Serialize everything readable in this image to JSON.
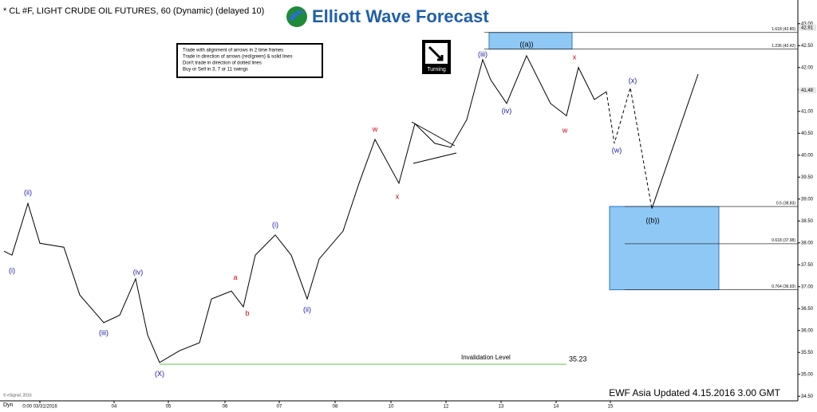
{
  "chart_data": {
    "type": "line",
    "title": "* CL #F, LIGHT CRUDE OIL FUTURES, 60 (Dynamic) (delayed 10)",
    "brand": "Elliott Wave Forecast",
    "footer": "EWF Asia Updated 4.15.2016 3.00 GMT",
    "copyright": "© eSignal, 2016",
    "dyn_label": "Dyn",
    "rules": [
      "Trade with alignment of arrows in 2 time frames",
      "Trade in direction of arrows (red/green) & solid lines",
      "Don't trade in direction of dotted lines",
      "Buy or Sell in 3, 7 or 11 swings"
    ],
    "turning_label": "Turning",
    "xlim": [
      0,
      200
    ],
    "ylim": [
      34.45,
      43.45
    ],
    "xticks": [
      {
        "value": 10,
        "label": "0:00 03/31/2016"
      },
      {
        "value": 28.6,
        "label": "04"
      },
      {
        "value": 42.2,
        "label": "05"
      },
      {
        "value": 56.4,
        "label": "06"
      },
      {
        "value": 70,
        "label": "07"
      },
      {
        "value": 84,
        "label": "08"
      },
      {
        "value": 98,
        "label": "10"
      },
      {
        "value": 111.8,
        "label": "12"
      },
      {
        "value": 125.6,
        "label": "13"
      },
      {
        "value": 139.4,
        "label": "14"
      },
      {
        "value": 153,
        "label": "15"
      }
    ],
    "yticks": [
      {
        "value": 34.5,
        "label": "34.50"
      },
      {
        "value": 35,
        "label": "35.00"
      },
      {
        "value": 35.5,
        "label": "35.50"
      },
      {
        "value": 36,
        "label": "36.00"
      },
      {
        "value": 36.5,
        "label": "36.50"
      },
      {
        "value": 37,
        "label": "37.00"
      },
      {
        "value": 37.5,
        "label": "37.50"
      },
      {
        "value": 38,
        "label": "38.00"
      },
      {
        "value": 38.5,
        "label": "38.50"
      },
      {
        "value": 39,
        "label": "39.00"
      },
      {
        "value": 39.5,
        "label": "39.50"
      },
      {
        "value": 40,
        "label": "40.00"
      },
      {
        "value": 40.5,
        "label": "40.50"
      },
      {
        "value": 41,
        "label": "41.00"
      },
      {
        "value": 41.5,
        "label": "41.50"
      },
      {
        "value": 42,
        "label": "42.00"
      },
      {
        "value": 42.5,
        "label": "42.50"
      },
      {
        "value": 43,
        "label": "43.00"
      }
    ],
    "price_labels": [
      {
        "value": 42.91,
        "label": "42.91"
      },
      {
        "value": 41.48,
        "label": "41.48"
      }
    ],
    "series": [
      {
        "name": "CL price",
        "color": "#000000",
        "style": "solid",
        "x": [
          1,
          3,
          7,
          10,
          16,
          20,
          26,
          30,
          34,
          37,
          40,
          45,
          50,
          53,
          58,
          61,
          64,
          69,
          73,
          77,
          80,
          86,
          90,
          94,
          100,
          104,
          109,
          113,
          117,
          121,
          123,
          127,
          132,
          138,
          142,
          145,
          149,
          152
        ],
        "values": [
          37.81,
          37.72,
          38.9,
          37.99,
          37.9,
          36.81,
          36.18,
          36.35,
          37.18,
          35.9,
          35.27,
          35.54,
          35.72,
          36.72,
          36.9,
          36.54,
          37.72,
          38.18,
          37.72,
          36.72,
          37.63,
          38.27,
          39.36,
          40.36,
          39.36,
          40.72,
          40.27,
          40.18,
          40.81,
          42.18,
          41.72,
          41.18,
          42.27,
          41.18,
          40.9,
          42.0,
          41.27,
          41.45
        ]
      },
      {
        "name": "Projection",
        "color": "#000000",
        "style": "dashed",
        "x": [
          152,
          154,
          158,
          163.4
        ],
        "values": [
          41.45,
          40.27,
          41.54,
          38.78
        ]
      },
      {
        "name": "Target path",
        "color": "#000000",
        "style": "solid",
        "x": [
          163.4,
          175
        ],
        "values": [
          38.78,
          41.85
        ]
      }
    ],
    "fib_levels": [
      {
        "value": 42.8,
        "label": "1.618 (42.80)"
      },
      {
        "value": 42.42,
        "label": "1.236 (42.42)"
      },
      {
        "value": 38.83,
        "label": "0.5 (38.83)"
      },
      {
        "value": 37.98,
        "label": "0.618 (37.98)"
      },
      {
        "value": 36.93,
        "label": "0.764 (36.93)"
      }
    ],
    "zones": [
      {
        "x": [
          122.6,
          143.4
        ],
        "values": [
          42.8,
          42.42
        ]
      },
      {
        "x": [
          152.8,
          180.2
        ],
        "values": [
          38.83,
          36.93
        ]
      }
    ],
    "invalidation": {
      "label": "Invalidation Level",
      "value": 35.23,
      "value_label": "35.23",
      "x": [
        40,
        142
      ]
    },
    "wave_labels": [
      {
        "text": "(i)",
        "color": "#1a1a9c",
        "x": 3,
        "y": 37.36
      },
      {
        "text": "(ii)",
        "color": "#1a1a9c",
        "x": 7,
        "y": 39.14
      },
      {
        "text": "(iii)",
        "color": "#1a1a9c",
        "x": 26,
        "y": 35.94
      },
      {
        "text": "(iv)",
        "color": "#1a1a9c",
        "x": 34.6,
        "y": 37.32
      },
      {
        "text": "(X)",
        "color": "#1a1a9c",
        "x": 40,
        "y": 35.0
      },
      {
        "text": "a",
        "color": "#d0021b",
        "x": 59,
        "y": 37.2
      },
      {
        "text": "b",
        "color": "#d0021b",
        "x": 62,
        "y": 36.38
      },
      {
        "text": "(i)",
        "color": "#1a1a9c",
        "x": 69,
        "y": 38.4
      },
      {
        "text": "(ii)",
        "color": "#1a1a9c",
        "x": 77,
        "y": 36.47
      },
      {
        "text": "w",
        "color": "#d0021b",
        "x": 94,
        "y": 40.58
      },
      {
        "text": "x",
        "color": "#d0021b",
        "x": 99.6,
        "y": 39.05
      },
      {
        "text": "(iii)",
        "color": "#1a1a9c",
        "x": 121,
        "y": 42.29
      },
      {
        "text": "(iv)",
        "color": "#1a1a9c",
        "x": 127,
        "y": 41.0
      },
      {
        "text": "((a))",
        "color": "#000000",
        "x": 132,
        "y": 42.52
      },
      {
        "text": "w",
        "color": "#d0021b",
        "x": 141.6,
        "y": 40.56
      },
      {
        "text": "x",
        "color": "#d0021b",
        "x": 144,
        "y": 42.23
      },
      {
        "text": "(w)",
        "color": "#1a1a9c",
        "x": 154.6,
        "y": 40.1
      },
      {
        "text": "(x)",
        "color": "#1a1a9c",
        "x": 158.6,
        "y": 41.69
      },
      {
        "text": "((b))",
        "color": "#000000",
        "x": 163.6,
        "y": 38.5
      }
    ]
  }
}
